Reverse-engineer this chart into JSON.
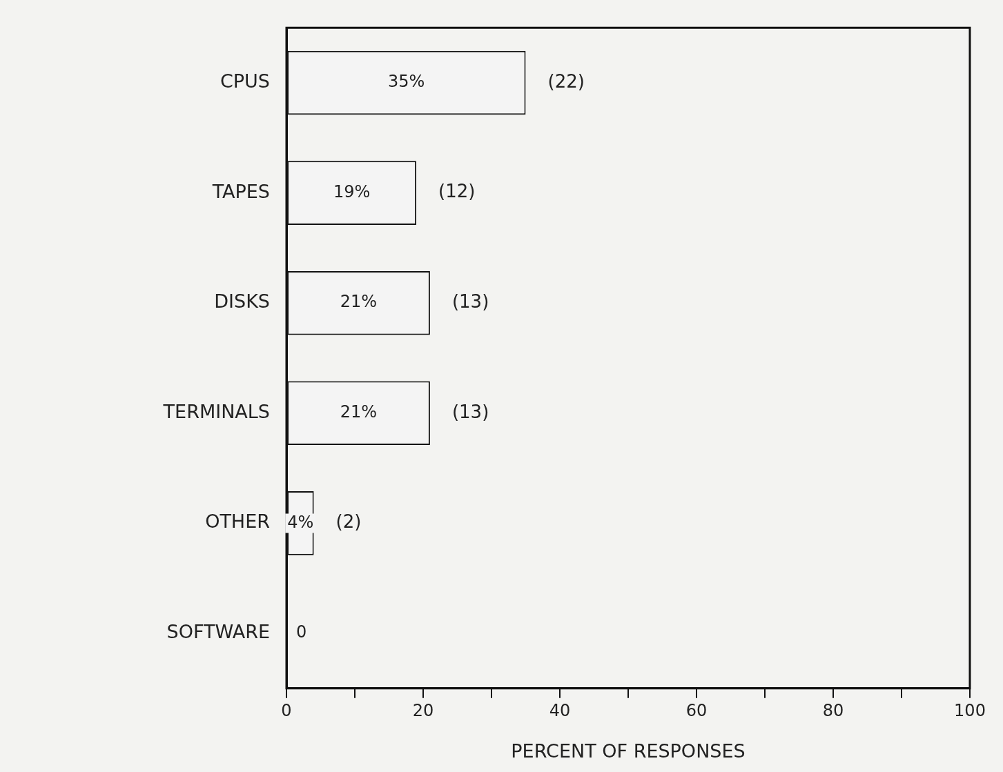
{
  "chart_data": {
    "type": "bar",
    "orientation": "horizontal",
    "xlabel": "PERCENT OF RESPONSES",
    "categories": [
      "CPUS",
      "TAPES",
      "DISKS",
      "TERMINALS",
      "OTHER",
      "SOFTWARE"
    ],
    "values": [
      35,
      19,
      21,
      21,
      4,
      0
    ],
    "value_labels": [
      "35%",
      "19%",
      "21%",
      "21%",
      "4%",
      "0"
    ],
    "color": "#f4f4f4",
    "xlim": [
      0,
      100
    ],
    "xticks": [
      0,
      {
        "value": 10,
        "label": null
      },
      20,
      {
        "value": 30,
        "label": null
      },
      40,
      {
        "value": 50,
        "label": null
      },
      60,
      {
        "value": 70,
        "label": null
      },
      80,
      {
        "value": 90,
        "label": null
      },
      100
    ],
    "grid": false,
    "legend": false,
    "annotations": [
      {
        "text": "(22)",
        "x": 35,
        "y": "CPUS"
      },
      {
        "text": "(12)",
        "x": 19,
        "y": "TAPES"
      },
      {
        "text": "(13)",
        "x": 21,
        "y": "DISKS"
      },
      {
        "text": "(13)",
        "x": 21,
        "y": "TERMINALS"
      },
      {
        "text": "(2)",
        "x": 4,
        "y": "OTHER"
      }
    ]
  }
}
